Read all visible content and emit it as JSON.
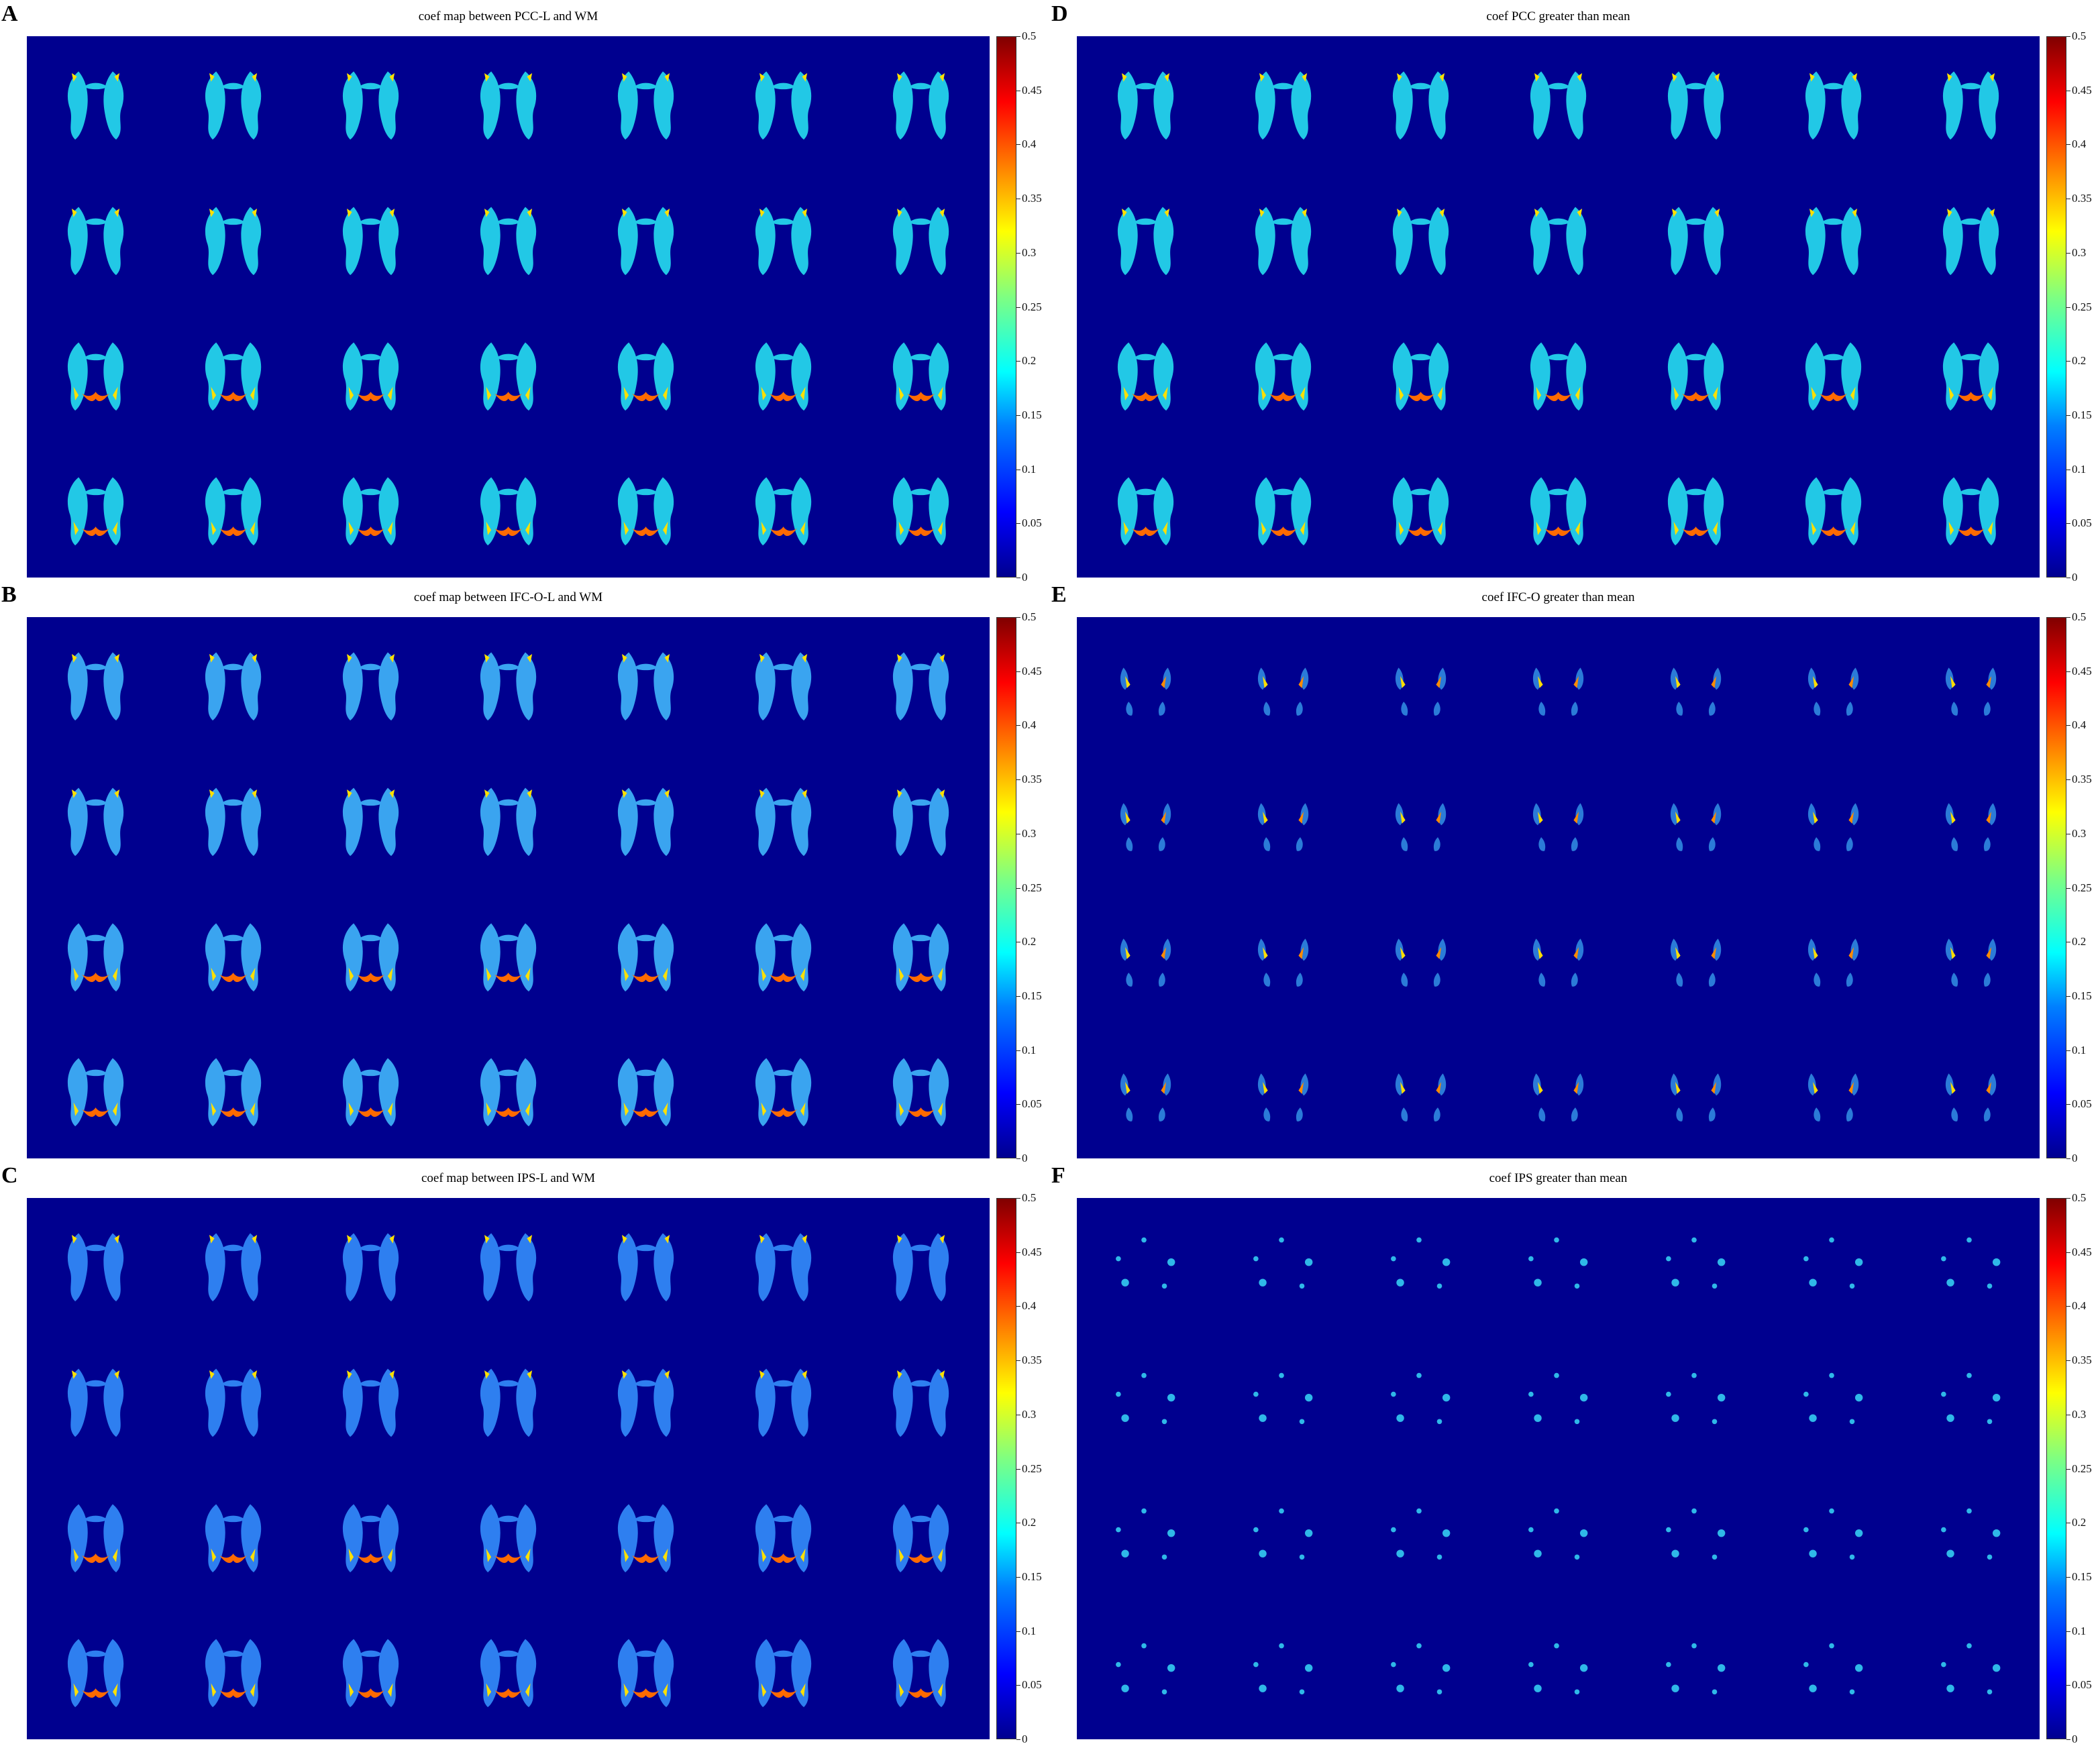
{
  "colorbar": {
    "ticks": [
      "0",
      "0.05",
      "0.1",
      "0.15",
      "0.2",
      "0.25",
      "0.3",
      "0.35",
      "0.4",
      "0.45",
      "0.5"
    ]
  },
  "grid": {
    "rows": 4,
    "cols": 7
  },
  "panels": [
    {
      "letter": "A",
      "title": "coef map between PCC-L and WM",
      "type": "full",
      "tint": "#22c8e6"
    },
    {
      "letter": "D",
      "title": "coef PCC greater than mean",
      "type": "full",
      "tint": "#22c8e6"
    },
    {
      "letter": "B",
      "title": "coef map between IFC-O-L and WM",
      "type": "full",
      "tint": "#3aa4f0"
    },
    {
      "letter": "E",
      "title": "coef IFC-O greater than mean",
      "type": "sparse",
      "tint": "#3aa4f0"
    },
    {
      "letter": "C",
      "title": "coef map between IPS-L and WM",
      "type": "full",
      "tint": "#2e7ff0"
    },
    {
      "letter": "F",
      "title": "coef IPS greater than mean",
      "type": "dots",
      "tint": "#2fb8e8"
    }
  ]
}
